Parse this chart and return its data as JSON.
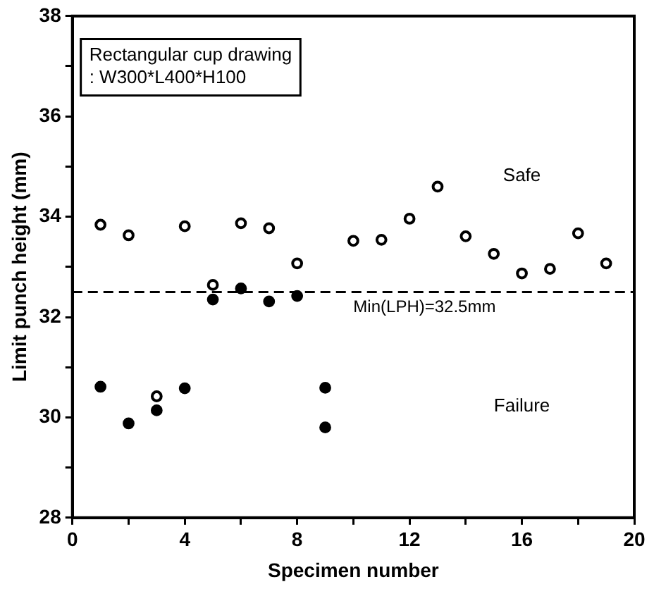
{
  "chart_data": {
    "type": "scatter",
    "xlabel": "Specimen number",
    "ylabel": "Limit punch height (mm)",
    "series": [
      {
        "color": "#000000",
        "x": [
          1,
          2,
          3,
          4,
          5,
          6,
          7,
          8,
          10,
          11,
          12,
          13,
          14,
          15,
          16,
          17,
          18,
          19
        ],
        "values": [
          33.84,
          33.63,
          30.42,
          33.81,
          32.64,
          33.87,
          33.77,
          33.07,
          33.52,
          33.54,
          33.96,
          34.6,
          33.61,
          33.26,
          32.87,
          32.96,
          33.67,
          33.07
        ]
      },
      {
        "color": "#000000",
        "x": [
          1,
          2,
          3,
          4,
          5,
          6,
          7,
          8,
          9,
          9
        ],
        "values": [
          30.61,
          29.88,
          30.14,
          30.58,
          32.35,
          32.57,
          32.31,
          32.42,
          30.59,
          29.8
        ]
      }
    ],
    "marker": "circle",
    "grid": false,
    "legend": false,
    "xlim": [
      0,
      20
    ],
    "xticks": [
      0,
      {
        "value": 2,
        "label": null
      },
      4,
      {
        "value": 6,
        "label": null
      },
      8,
      {
        "value": 10,
        "label": null
      },
      12,
      {
        "value": 14,
        "label": null
      },
      16,
      {
        "value": 18,
        "label": null
      },
      20
    ],
    "ylim": [
      28,
      38
    ],
    "yticks": [
      28,
      {
        "value": 29,
        "label": null
      },
      30,
      {
        "value": 31,
        "label": null
      },
      32,
      {
        "value": 33,
        "label": null
      },
      34,
      {
        "value": 35,
        "label": null
      },
      36,
      {
        "value": 37,
        "label": null
      },
      38
    ],
    "ref_lines": [
      {
        "axis": "y",
        "value": 32.5,
        "label": "Min(LPH)=32.5mm",
        "color": "#000000",
        "line_style": "dashed"
      }
    ],
    "annotations": [
      "Rectangular cup drawing\n: W300*L400*H100",
      "Safe",
      "Failure"
    ]
  }
}
